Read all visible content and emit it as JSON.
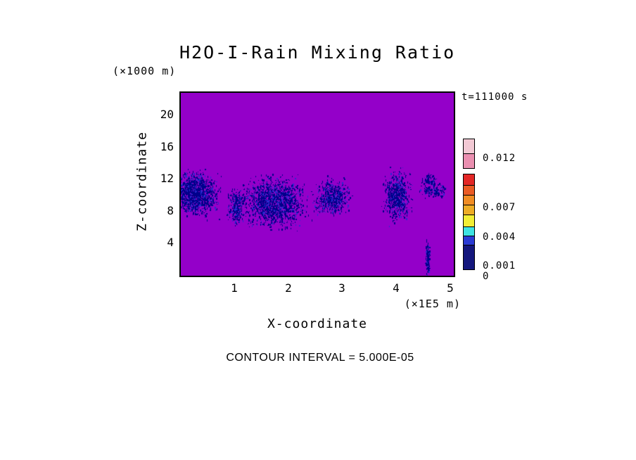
{
  "chart_data": {
    "type": "heatmap",
    "title": "H2O-I-Rain Mixing Ratio",
    "time_annotation": "t=111000 s",
    "xlabel": "X-coordinate",
    "ylabel": "Z-coordinate",
    "x_unit": "(×1E5 m)",
    "y_unit": "(×1000 m)",
    "contour_interval_label": "CONTOUR INTERVAL = 5.000E-05",
    "xlim": [
      0,
      5.06
    ],
    "ylim": [
      0,
      22.8
    ],
    "x_ticks": [
      "1",
      "2",
      "3",
      "4",
      "5"
    ],
    "x_tick_values": [
      1,
      2,
      3,
      4,
      5
    ],
    "y_ticks": [
      "20",
      "16",
      "12",
      "8",
      "4"
    ],
    "y_tick_values": [
      20,
      16,
      12,
      8,
      4
    ],
    "grid": false,
    "legend_position": "right-colorbar",
    "field_color": "#9400c9",
    "field_note": "uniform background field below lowest contour level",
    "rain_color": "#00008b",
    "rain_color_alt": "#2a2ad0",
    "rain_regions": [
      {
        "x_center": 0.27,
        "z_center": 10.2,
        "x_radius": 0.36,
        "z_radius": 2.4,
        "points": 1400
      },
      {
        "x_center": 1.03,
        "z_center": 8.6,
        "x_radius": 0.14,
        "z_radius": 1.9,
        "points": 300
      },
      {
        "x_center": 1.75,
        "z_center": 9.2,
        "x_radius": 0.48,
        "z_radius": 2.6,
        "points": 1600
      },
      {
        "x_center": 2.8,
        "z_center": 9.8,
        "x_radius": 0.28,
        "z_radius": 2.0,
        "points": 600
      },
      {
        "x_center": 4.02,
        "z_center": 9.9,
        "x_radius": 0.22,
        "z_radius": 2.6,
        "points": 650
      },
      {
        "x_center": 4.68,
        "z_center": 10.6,
        "x_radius": 0.22,
        "z_radius": 0.8,
        "points": 160
      },
      {
        "x_center": 4.6,
        "z_center": 12.0,
        "x_radius": 0.12,
        "z_radius": 0.6,
        "points": 80
      },
      {
        "x_center": 4.58,
        "z_center": 2.0,
        "x_radius": 0.035,
        "z_radius": 2.0,
        "points": 200
      }
    ],
    "colorbar": {
      "segments": [
        {
          "color": "#f2c9d4",
          "h": 22
        },
        {
          "color": "#ea8fb0",
          "h": 22
        },
        {
          "color": null,
          "h": 8
        },
        {
          "color": "#e32726",
          "h": 17
        },
        {
          "color": "#ea5b24",
          "h": 15
        },
        {
          "color": "#f08c23",
          "h": 15
        },
        {
          "color": "#edac25",
          "h": 15
        },
        {
          "color": "#f2ee35",
          "h": 18
        },
        {
          "color": "#3fe3e3",
          "h": 14
        },
        {
          "color": "#2b3bd4",
          "h": 14
        },
        {
          "color": "#14177d",
          "h": 36
        }
      ],
      "labels": [
        {
          "text": "0.012"
        },
        {
          "text": "0.007"
        },
        {
          "text": "0.004"
        },
        {
          "text": "0.001"
        },
        {
          "text": "0"
        }
      ]
    }
  }
}
